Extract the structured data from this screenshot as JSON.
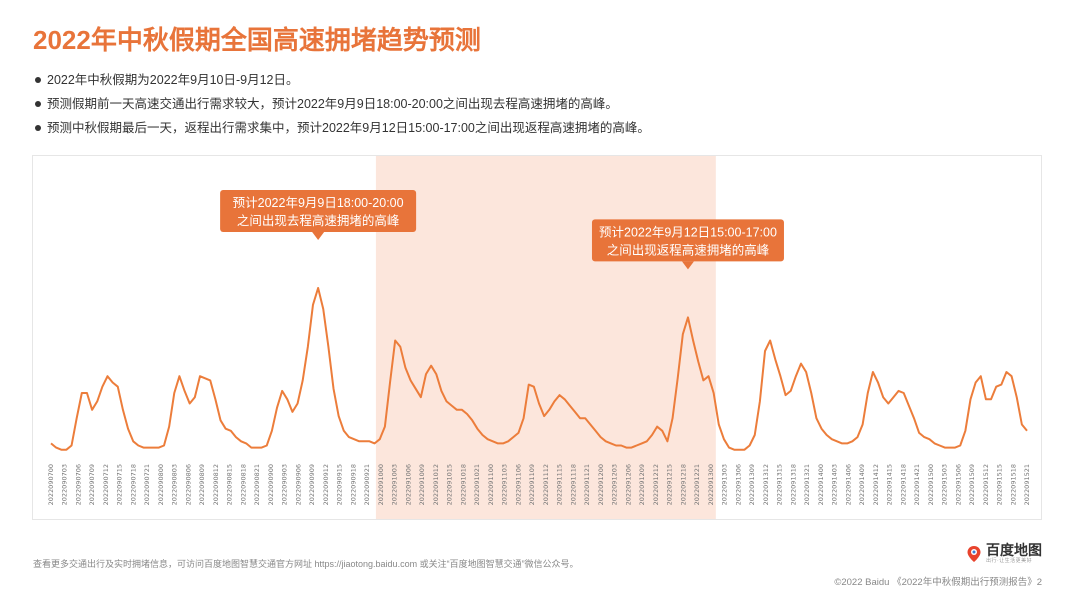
{
  "title": "2022年中秋假期全国高速拥堵趋势预测",
  "bullets": [
    "2022年中秋假期为2022年9月10日-9月12日。",
    "预测假期前一天高速交通出行需求较大，预计2022年9月9日18:00-20:00之间出现去程高速拥堵的高峰。",
    "预测中秋假期最后一天，返程出行需求集中，预计2022年9月12日15:00-17:00之间出现返程高速拥堵的高峰。"
  ],
  "colors": {
    "accent": "#e8743a",
    "highlight": "#fce6dc",
    "line": "#ec7d3b"
  },
  "footer": {
    "left": "查看更多交通出行及实时拥堵信息，可访问百度地图智慧交通官方网址 https://jiaotong.baidu.com 或关注“百度地图智慧交通”微信公众号。",
    "right": "©2022 Baidu 《2022年中秋假期出行预测报告》2",
    "logo": "百度地图",
    "logo_slogan": "出行·让生活更美好",
    "logo_icon": "map-pin-icon"
  },
  "chart_data": {
    "type": "line",
    "title": "",
    "xlabel": "",
    "ylabel": "",
    "grid": false,
    "legend": "none",
    "x_ticks": [
      "2022090700",
      "2022090703",
      "2022090706",
      "2022090709",
      "2022090712",
      "2022090715",
      "2022090718",
      "2022090721",
      "2022090800",
      "2022090803",
      "2022090806",
      "2022090809",
      "2022090812",
      "2022090815",
      "2022090818",
      "2022090821",
      "2022090900",
      "2022090903",
      "2022090906",
      "2022090909",
      "2022090912",
      "2022090915",
      "2022090918",
      "2022090921",
      "2022091000",
      "2022091003",
      "2022091006",
      "2022091009",
      "2022091012",
      "2022091015",
      "2022091018",
      "2022091021",
      "2022091100",
      "2022091103",
      "2022091106",
      "2022091109",
      "2022091112",
      "2022091115",
      "2022091118",
      "2022091121",
      "2022091200",
      "2022091203",
      "2022091206",
      "2022091209",
      "2022091212",
      "2022091215",
      "2022091218",
      "2022091221",
      "2022091300",
      "2022091303",
      "2022091306",
      "2022091309",
      "2022091312",
      "2022091315",
      "2022091318",
      "2022091321",
      "2022091400",
      "2022091403",
      "2022091406",
      "2022091409",
      "2022091412",
      "2022091415",
      "2022091418",
      "2022091421",
      "2022091500",
      "2022091503",
      "2022091506",
      "2022091509",
      "2022091512",
      "2022091515",
      "2022091518",
      "2022091521"
    ],
    "highlight_range": [
      "2022091000",
      "2022091300"
    ],
    "ylim": [
      0,
      100
    ],
    "series": [
      {
        "values": [
          6,
          4,
          3,
          3,
          5,
          18,
          30,
          30,
          22,
          26,
          33,
          38,
          35,
          33,
          22,
          13,
          7,
          5,
          4,
          4,
          4,
          4,
          5,
          14,
          30,
          38,
          31,
          25,
          28,
          38,
          37,
          36,
          27,
          17,
          13,
          12,
          9,
          7,
          6,
          4,
          4,
          4,
          5,
          12,
          23,
          31,
          27,
          21,
          25,
          36,
          52,
          72,
          80,
          70,
          52,
          32,
          19,
          12,
          9,
          8,
          7,
          7,
          7,
          6,
          8,
          14,
          35,
          55,
          52,
          42,
          36,
          32,
          28,
          39,
          43,
          39,
          31,
          26,
          24,
          22,
          22,
          20,
          17,
          13,
          10,
          8,
          7,
          6,
          6,
          7,
          9,
          11,
          18,
          34,
          33,
          25,
          19,
          22,
          26,
          29,
          27,
          24,
          21,
          18,
          18,
          15,
          12,
          9,
          7,
          6,
          5,
          5,
          4,
          4,
          5,
          6,
          7,
          10,
          14,
          12,
          7,
          18,
          37,
          58,
          66,
          55,
          45,
          36,
          38,
          30,
          15,
          8,
          4,
          3,
          3,
          3,
          5,
          10,
          26,
          50,
          55,
          46,
          38,
          29,
          31,
          38,
          44,
          40,
          30,
          18,
          13,
          10,
          8,
          7,
          6,
          6,
          7,
          9,
          15,
          30,
          40,
          35,
          28,
          25,
          28,
          31,
          30,
          24,
          18,
          11,
          9,
          8,
          6,
          5,
          4,
          4,
          4,
          5,
          12,
          27,
          35,
          38,
          27,
          27,
          33,
          34,
          40,
          38,
          28,
          15,
          12
        ]
      }
    ],
    "annotations": [
      {
        "line1": "预计2022年9月9日18:00-20:00",
        "line2": "之间出现去程高速拥堵的高峰",
        "peak_value": 80
      },
      {
        "line1": "预计2022年9月12日15:00-17:00",
        "line2": "之间出现返程高速拥堵的高峰",
        "peak_value": 66
      }
    ]
  }
}
